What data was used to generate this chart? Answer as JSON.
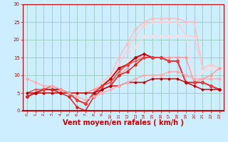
{
  "bg_color": "#cceeff",
  "grid_color": "#99ccbb",
  "xlabel": "Vent moyen/en rafales ( km/h )",
  "xlabel_color": "#cc0000",
  "xlabel_fontsize": 7,
  "tick_color": "#cc0000",
  "xlim": [
    -0.5,
    23.5
  ],
  "ylim": [
    0,
    30
  ],
  "yticks": [
    0,
    5,
    10,
    15,
    20,
    25,
    30
  ],
  "xticks": [
    0,
    1,
    2,
    3,
    4,
    5,
    6,
    7,
    8,
    9,
    10,
    11,
    12,
    13,
    14,
    15,
    16,
    17,
    18,
    19,
    20,
    21,
    22,
    23
  ],
  "series": [
    {
      "x": [
        0,
        1,
        2,
        3,
        4,
        5,
        6,
        7,
        8,
        9,
        10,
        11,
        12,
        13,
        14,
        15,
        16,
        17,
        18,
        19,
        20,
        21,
        22,
        23
      ],
      "y": [
        5,
        5,
        5,
        5,
        5,
        5,
        5,
        5,
        6,
        8,
        10,
        15,
        19,
        23,
        25,
        26,
        26,
        26,
        26,
        25,
        25,
        12,
        13,
        12
      ],
      "color": "#ffbbbb",
      "lw": 1.0,
      "marker": "D",
      "ms": 1.8
    },
    {
      "x": [
        0,
        1,
        2,
        3,
        4,
        5,
        6,
        7,
        8,
        9,
        10,
        11,
        12,
        13,
        14,
        15,
        16,
        17,
        18,
        19,
        20,
        21,
        22,
        23
      ],
      "y": [
        5,
        5,
        5,
        5,
        5,
        5,
        5,
        5,
        6,
        8,
        9,
        13,
        17,
        21,
        24,
        25,
        25,
        25,
        25,
        21,
        21,
        12,
        13,
        12
      ],
      "color": "#ffcccc",
      "lw": 1.0,
      "marker": "D",
      "ms": 1.8
    },
    {
      "x": [
        0,
        1,
        2,
        3,
        4,
        5,
        6,
        7,
        8,
        9,
        10,
        11,
        12,
        13,
        14,
        15,
        16,
        17,
        18,
        19,
        20,
        21,
        22,
        23
      ],
      "y": [
        5,
        5,
        5,
        5,
        5,
        5,
        5,
        5,
        6,
        7,
        8,
        11,
        14,
        18,
        21,
        21,
        21,
        21,
        21,
        21,
        9,
        11,
        12,
        12
      ],
      "color": "#ffdddd",
      "lw": 1.0,
      "marker": "D",
      "ms": 1.8
    },
    {
      "x": [
        0,
        1,
        2,
        3,
        4,
        5,
        6,
        7,
        8,
        9,
        10,
        11,
        12,
        13,
        14,
        15,
        16,
        17,
        18,
        19,
        20,
        21,
        22,
        23
      ],
      "y": [
        5,
        5,
        5,
        5,
        5,
        5,
        5,
        5,
        6,
        7,
        8,
        10,
        12,
        15,
        15,
        15,
        15,
        15,
        15,
        15,
        8,
        9,
        10,
        12
      ],
      "color": "#ff9999",
      "lw": 1.0,
      "marker": "D",
      "ms": 1.8
    },
    {
      "x": [
        0,
        1,
        2,
        3,
        4,
        5,
        6,
        7,
        8,
        9,
        10,
        11,
        12,
        13,
        14,
        15,
        16,
        17,
        18,
        19,
        20,
        21,
        22,
        23
      ],
      "y": [
        4,
        5,
        6,
        6,
        6,
        5,
        3,
        2,
        5,
        7,
        9,
        12,
        13,
        15,
        16,
        15,
        15,
        14,
        14,
        8,
        8,
        8,
        7,
        6
      ],
      "color": "#cc0000",
      "lw": 1.3,
      "marker": "D",
      "ms": 2.0
    },
    {
      "x": [
        0,
        1,
        2,
        3,
        4,
        5,
        6,
        7,
        8,
        9,
        10,
        11,
        12,
        13,
        14,
        15,
        16,
        17,
        18,
        19,
        20,
        21,
        22,
        23
      ],
      "y": [
        4,
        5,
        6,
        6,
        5,
        4,
        1,
        0,
        4,
        6,
        7,
        10,
        11,
        13,
        15,
        15,
        15,
        14,
        14,
        8,
        8,
        8,
        7,
        6
      ],
      "color": "#dd2222",
      "lw": 1.1,
      "marker": "D",
      "ms": 2.0
    },
    {
      "x": [
        0,
        1,
        2,
        3,
        4,
        5,
        6,
        7,
        8,
        9,
        10,
        11,
        12,
        13,
        14,
        15,
        16,
        17,
        18,
        19,
        20,
        21,
        22,
        23
      ],
      "y": [
        5,
        6,
        6,
        7,
        6,
        5,
        3,
        2,
        5,
        7,
        8,
        11,
        13,
        14,
        15,
        15,
        15,
        14,
        14,
        8,
        8,
        8,
        7,
        6
      ],
      "color": "#ee4444",
      "lw": 1.0,
      "marker": "+",
      "ms": 3.0
    },
    {
      "x": [
        0,
        1,
        2,
        3,
        4,
        5,
        6,
        7,
        8,
        9,
        10,
        11,
        12,
        13,
        14,
        15,
        16,
        17,
        18,
        19,
        20,
        21,
        22,
        23
      ],
      "y": [
        5,
        5,
        5,
        5,
        5,
        5,
        5,
        5,
        5,
        6,
        7,
        7,
        8,
        8,
        8,
        9,
        9,
        9,
        9,
        8,
        7,
        6,
        6,
        6
      ],
      "color": "#bb0000",
      "lw": 1.0,
      "marker": "D",
      "ms": 1.5
    },
    {
      "x": [
        0,
        1,
        2,
        3,
        4,
        5,
        6,
        7,
        8,
        9,
        10,
        11,
        12,
        13,
        14,
        15,
        16,
        17,
        18,
        19,
        20,
        21,
        22,
        23
      ],
      "y": [
        9,
        8,
        7,
        7,
        6,
        5,
        4,
        3,
        4,
        5,
        6,
        7,
        8,
        9,
        10,
        10,
        10,
        11,
        11,
        10,
        9,
        9,
        9,
        9
      ],
      "color": "#ffaaaa",
      "lw": 1.0,
      "marker": "D",
      "ms": 1.8
    }
  ]
}
